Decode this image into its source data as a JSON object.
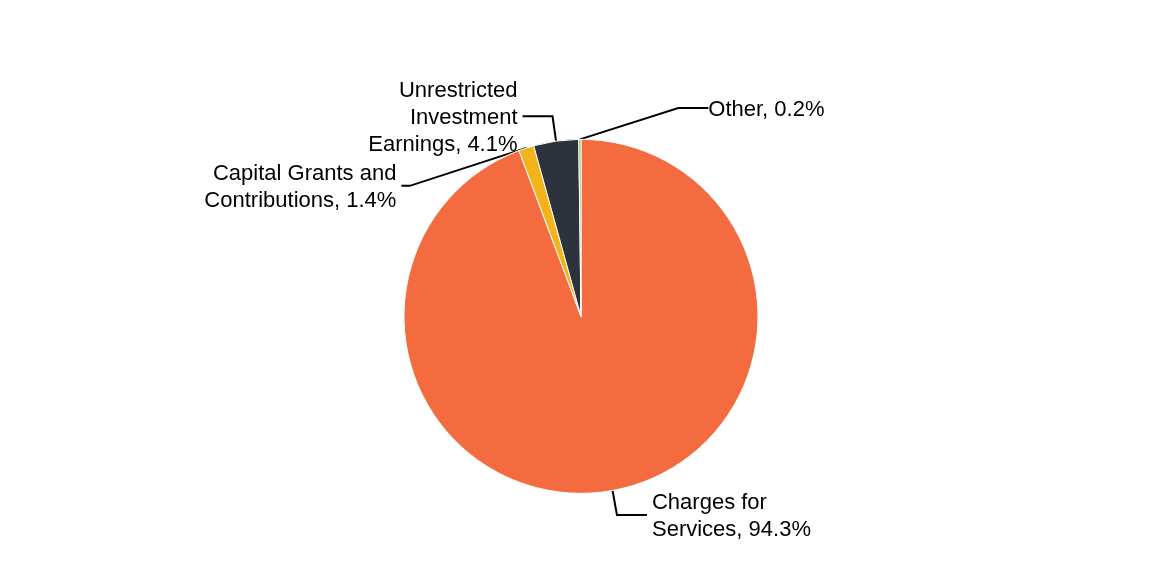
{
  "chart_data": {
    "type": "pie",
    "categories": [
      "Charges for Services",
      "Capital Grants and Contributions",
      "Unrestricted Investment Earnings",
      "Other"
    ],
    "value_labels": [
      "94.3%",
      "1.4%",
      "4.1%",
      "0.2%"
    ],
    "values": [
      94.3,
      1.4,
      4.1,
      0.2
    ],
    "colors": [
      "#f46b40",
      "#f2b31b",
      "#2d333d",
      "#7cc04b"
    ],
    "legend": false
  }
}
